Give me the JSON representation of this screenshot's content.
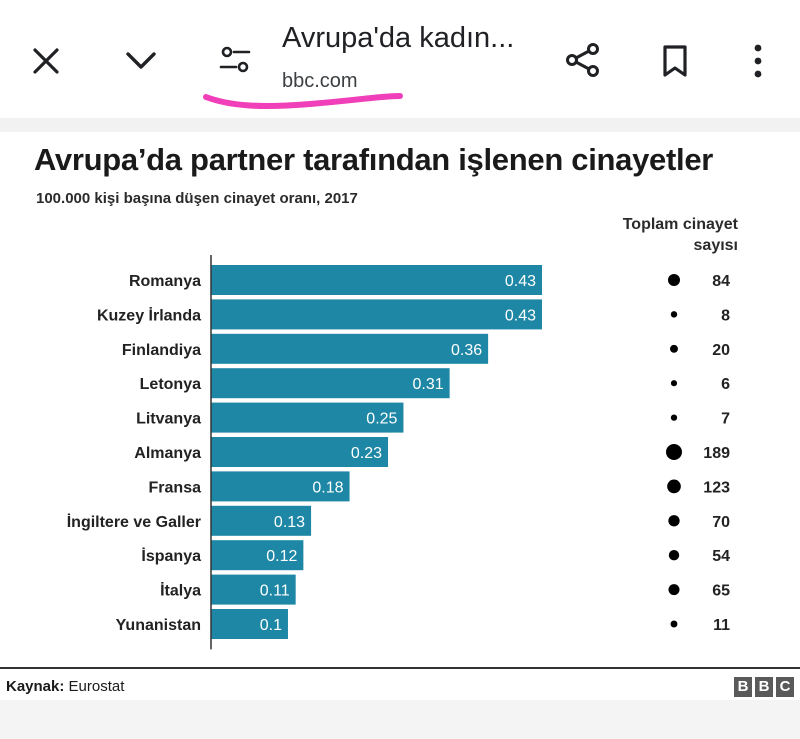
{
  "browser": {
    "title": "Avrupa'da kadın...",
    "domain": "bbc.com",
    "icons": {
      "close": "close-icon",
      "collapse": "chevron-down-icon",
      "page_settings": "tune-icon",
      "share": "share-icon",
      "bookmark": "bookmark-icon",
      "more": "more-vertical-icon"
    },
    "annotation_color": "#f03fb8"
  },
  "chart_data": {
    "type": "bar",
    "orientation": "horizontal",
    "title": "Avrupa’da partner tarafından işlenen cinayetler",
    "subtitle": "100.000 kişi başına düşen cinayet oranı, 2017",
    "categories": [
      "Romanya",
      "Kuzey İrlanda",
      "Finlandiya",
      "Letonya",
      "Litvanya",
      "Almanya",
      "Fransa",
      "İngiltere ve Galler",
      "İspanya",
      "İtalya",
      "Yunanistan"
    ],
    "values": [
      0.43,
      0.43,
      0.36,
      0.31,
      0.25,
      0.23,
      0.18,
      0.13,
      0.12,
      0.11,
      0.1
    ],
    "value_labels": [
      "0.43",
      "0.43",
      "0.36",
      "0.31",
      "0.25",
      "0.23",
      "0.18",
      "0.13",
      "0.12",
      "0.11",
      "0.1"
    ],
    "secondary_header": "Toplam cinayet sayısı",
    "totals": [
      84,
      8,
      20,
      6,
      7,
      189,
      123,
      70,
      54,
      65,
      11
    ],
    "bar_color": "#1d87a5",
    "dot_color": "#000000",
    "xlim": [
      0,
      0.43
    ],
    "grid": false
  },
  "footer": {
    "source_label": "Kaynak:",
    "source_value": "Eurostat",
    "logo_letters": [
      "B",
      "B",
      "C"
    ]
  }
}
